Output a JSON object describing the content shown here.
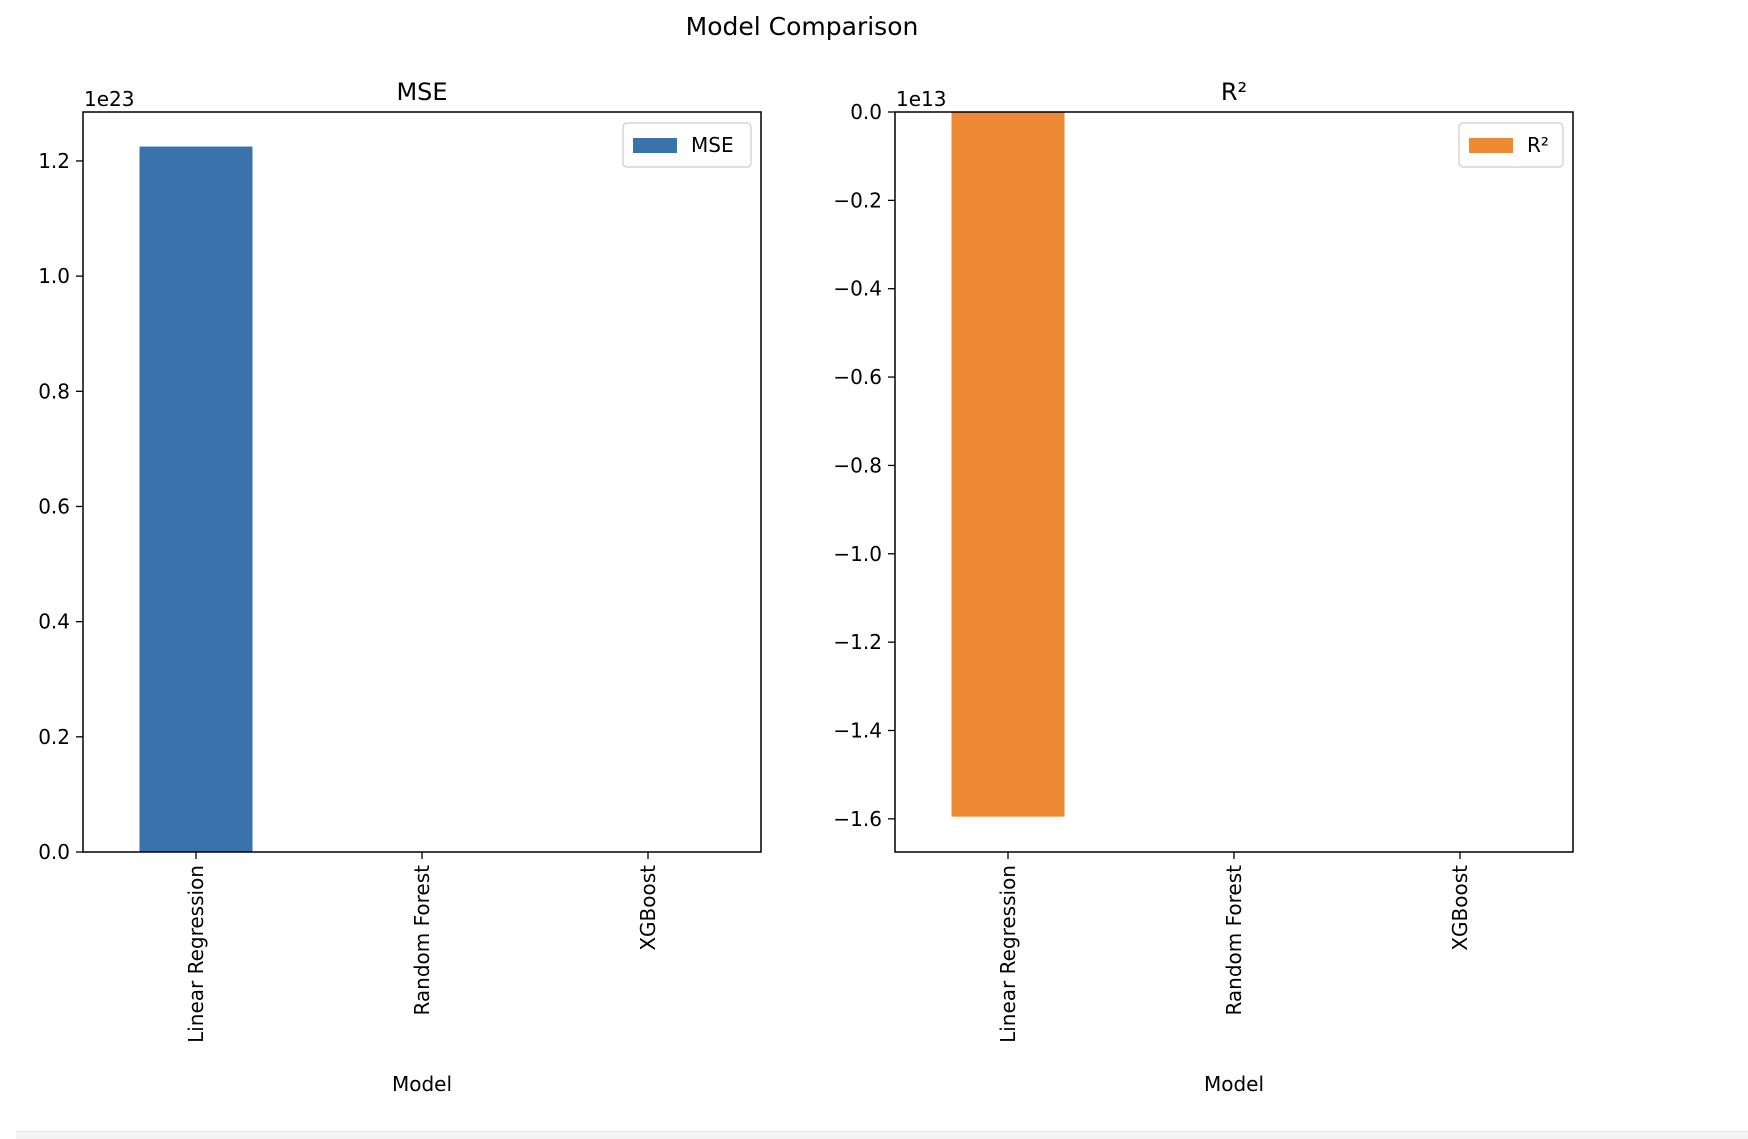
{
  "figure": {
    "suptitle": "Model Comparison"
  },
  "chart_data": [
    {
      "type": "bar",
      "title": "MSE",
      "categories": [
        "Linear Regression",
        "Random Forest",
        "XGBoost"
      ],
      "series": [
        {
          "name": "MSE",
          "values": [
            1.225e+23,
            0,
            0
          ]
        }
      ],
      "xlabel": "Model",
      "ylabel": "",
      "ylim": [
        0,
        1.285e+23
      ],
      "yticks": [
        0,
        0.2,
        0.4,
        0.6,
        0.8,
        1.0,
        1.2
      ],
      "ytick_labels": [
        "0.0",
        "0.2",
        "0.4",
        "0.6",
        "0.8",
        "1.0",
        "1.2"
      ],
      "offset_label": "1e23",
      "scale": 1e+23,
      "grid": false,
      "legend": "top-right",
      "color": "#3a73ab"
    },
    {
      "type": "bar",
      "title": "R²",
      "categories": [
        "Linear Regression",
        "Random Forest",
        "XGBoost"
      ],
      "series": [
        {
          "name": "R²",
          "values": [
            -15950000000000.0,
            0,
            0
          ]
        }
      ],
      "xlabel": "Model",
      "ylabel": "",
      "ylim": [
        -16750000000000.0,
        0
      ],
      "yticks": [
        0,
        -0.2,
        -0.4,
        -0.6,
        -0.8,
        -1.0,
        -1.2,
        -1.4,
        -1.6
      ],
      "ytick_labels": [
        "0.0",
        "−0.2",
        "−0.4",
        "−0.6",
        "−0.8",
        "−1.0",
        "−1.2",
        "−1.4",
        "−1.6"
      ],
      "offset_label": "1e13",
      "scale": 10000000000000.0,
      "grid": false,
      "legend": "top-right",
      "color": "#ee8936"
    }
  ]
}
